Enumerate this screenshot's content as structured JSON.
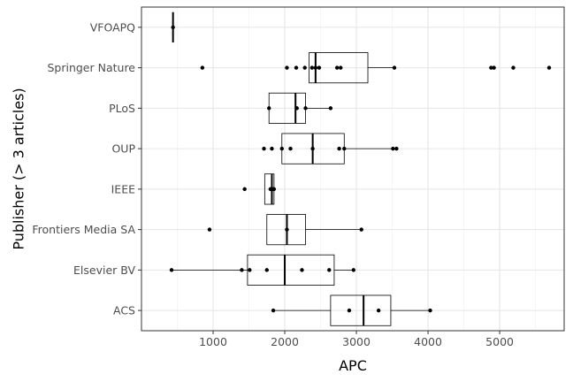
{
  "chart_data": {
    "type": "boxplot",
    "orientation": "horizontal",
    "xlabel": "APC",
    "ylabel": "Publisher (> 3 articles)",
    "xlim": [
      0,
      5900
    ],
    "xticks": [
      1000,
      2000,
      3000,
      4000,
      5000
    ],
    "grid": true,
    "categories": [
      "ACS",
      "Elsevier BV",
      "Frontiers Media SA",
      "IEEE",
      "OUP",
      "PLoS",
      "Springer Nature",
      "VFOAPQ"
    ],
    "boxes": [
      {
        "category": "ACS",
        "whisker_low": 1840,
        "q1": 2640,
        "median": 3100,
        "q3": 3480,
        "whisker_high": 4030
      },
      {
        "category": "Elsevier BV",
        "whisker_low": 420,
        "q1": 1480,
        "median": 2000,
        "q3": 2690,
        "whisker_high": 2960
      },
      {
        "category": "Frontiers Media SA",
        "whisker_low": 1750,
        "q1": 1750,
        "median": 2030,
        "q3": 2290,
        "whisker_high": 3070
      },
      {
        "category": "IEEE",
        "whisker_low": 1720,
        "q1": 1720,
        "median": 1820,
        "q3": 1850,
        "whisker_high": 1850
      },
      {
        "category": "OUP",
        "whisker_low": 1960,
        "q1": 1960,
        "median": 2390,
        "q3": 2830,
        "whisker_high": 3550
      },
      {
        "category": "PLoS",
        "whisker_low": 1780,
        "q1": 1780,
        "median": 2150,
        "q3": 2290,
        "whisker_high": 2640
      },
      {
        "category": "Springer Nature",
        "whisker_low": 2340,
        "q1": 2340,
        "median": 2430,
        "q3": 3160,
        "whisker_high": 3530
      },
      {
        "category": "VFOAPQ",
        "whisker_low": 440,
        "q1": 440,
        "median": 440,
        "q3": 440,
        "whisker_high": 440
      }
    ],
    "points": [
      {
        "category": "ACS",
        "values": [
          1840,
          2900,
          3310,
          4030
        ]
      },
      {
        "category": "Elsevier BV",
        "values": [
          420,
          1400,
          1510,
          1750,
          2240,
          2620,
          2960
        ]
      },
      {
        "category": "Frontiers Media SA",
        "values": [
          950,
          2030,
          3070
        ]
      },
      {
        "category": "IEEE",
        "values": [
          1440,
          1800,
          1830,
          1850
        ]
      },
      {
        "category": "OUP",
        "values": [
          1710,
          1820,
          1960,
          2080,
          2390,
          2760,
          2830,
          3510,
          3560
        ]
      },
      {
        "category": "PLoS",
        "values": [
          1780,
          2170,
          2290,
          2640
        ]
      },
      {
        "category": "Springer Nature",
        "values": [
          850,
          2030,
          2160,
          2280,
          2380,
          2430,
          2480,
          2730,
          2780,
          3530,
          4880,
          4920,
          5190,
          5690
        ]
      },
      {
        "category": "VFOAPQ",
        "values": [
          440
        ]
      }
    ]
  }
}
